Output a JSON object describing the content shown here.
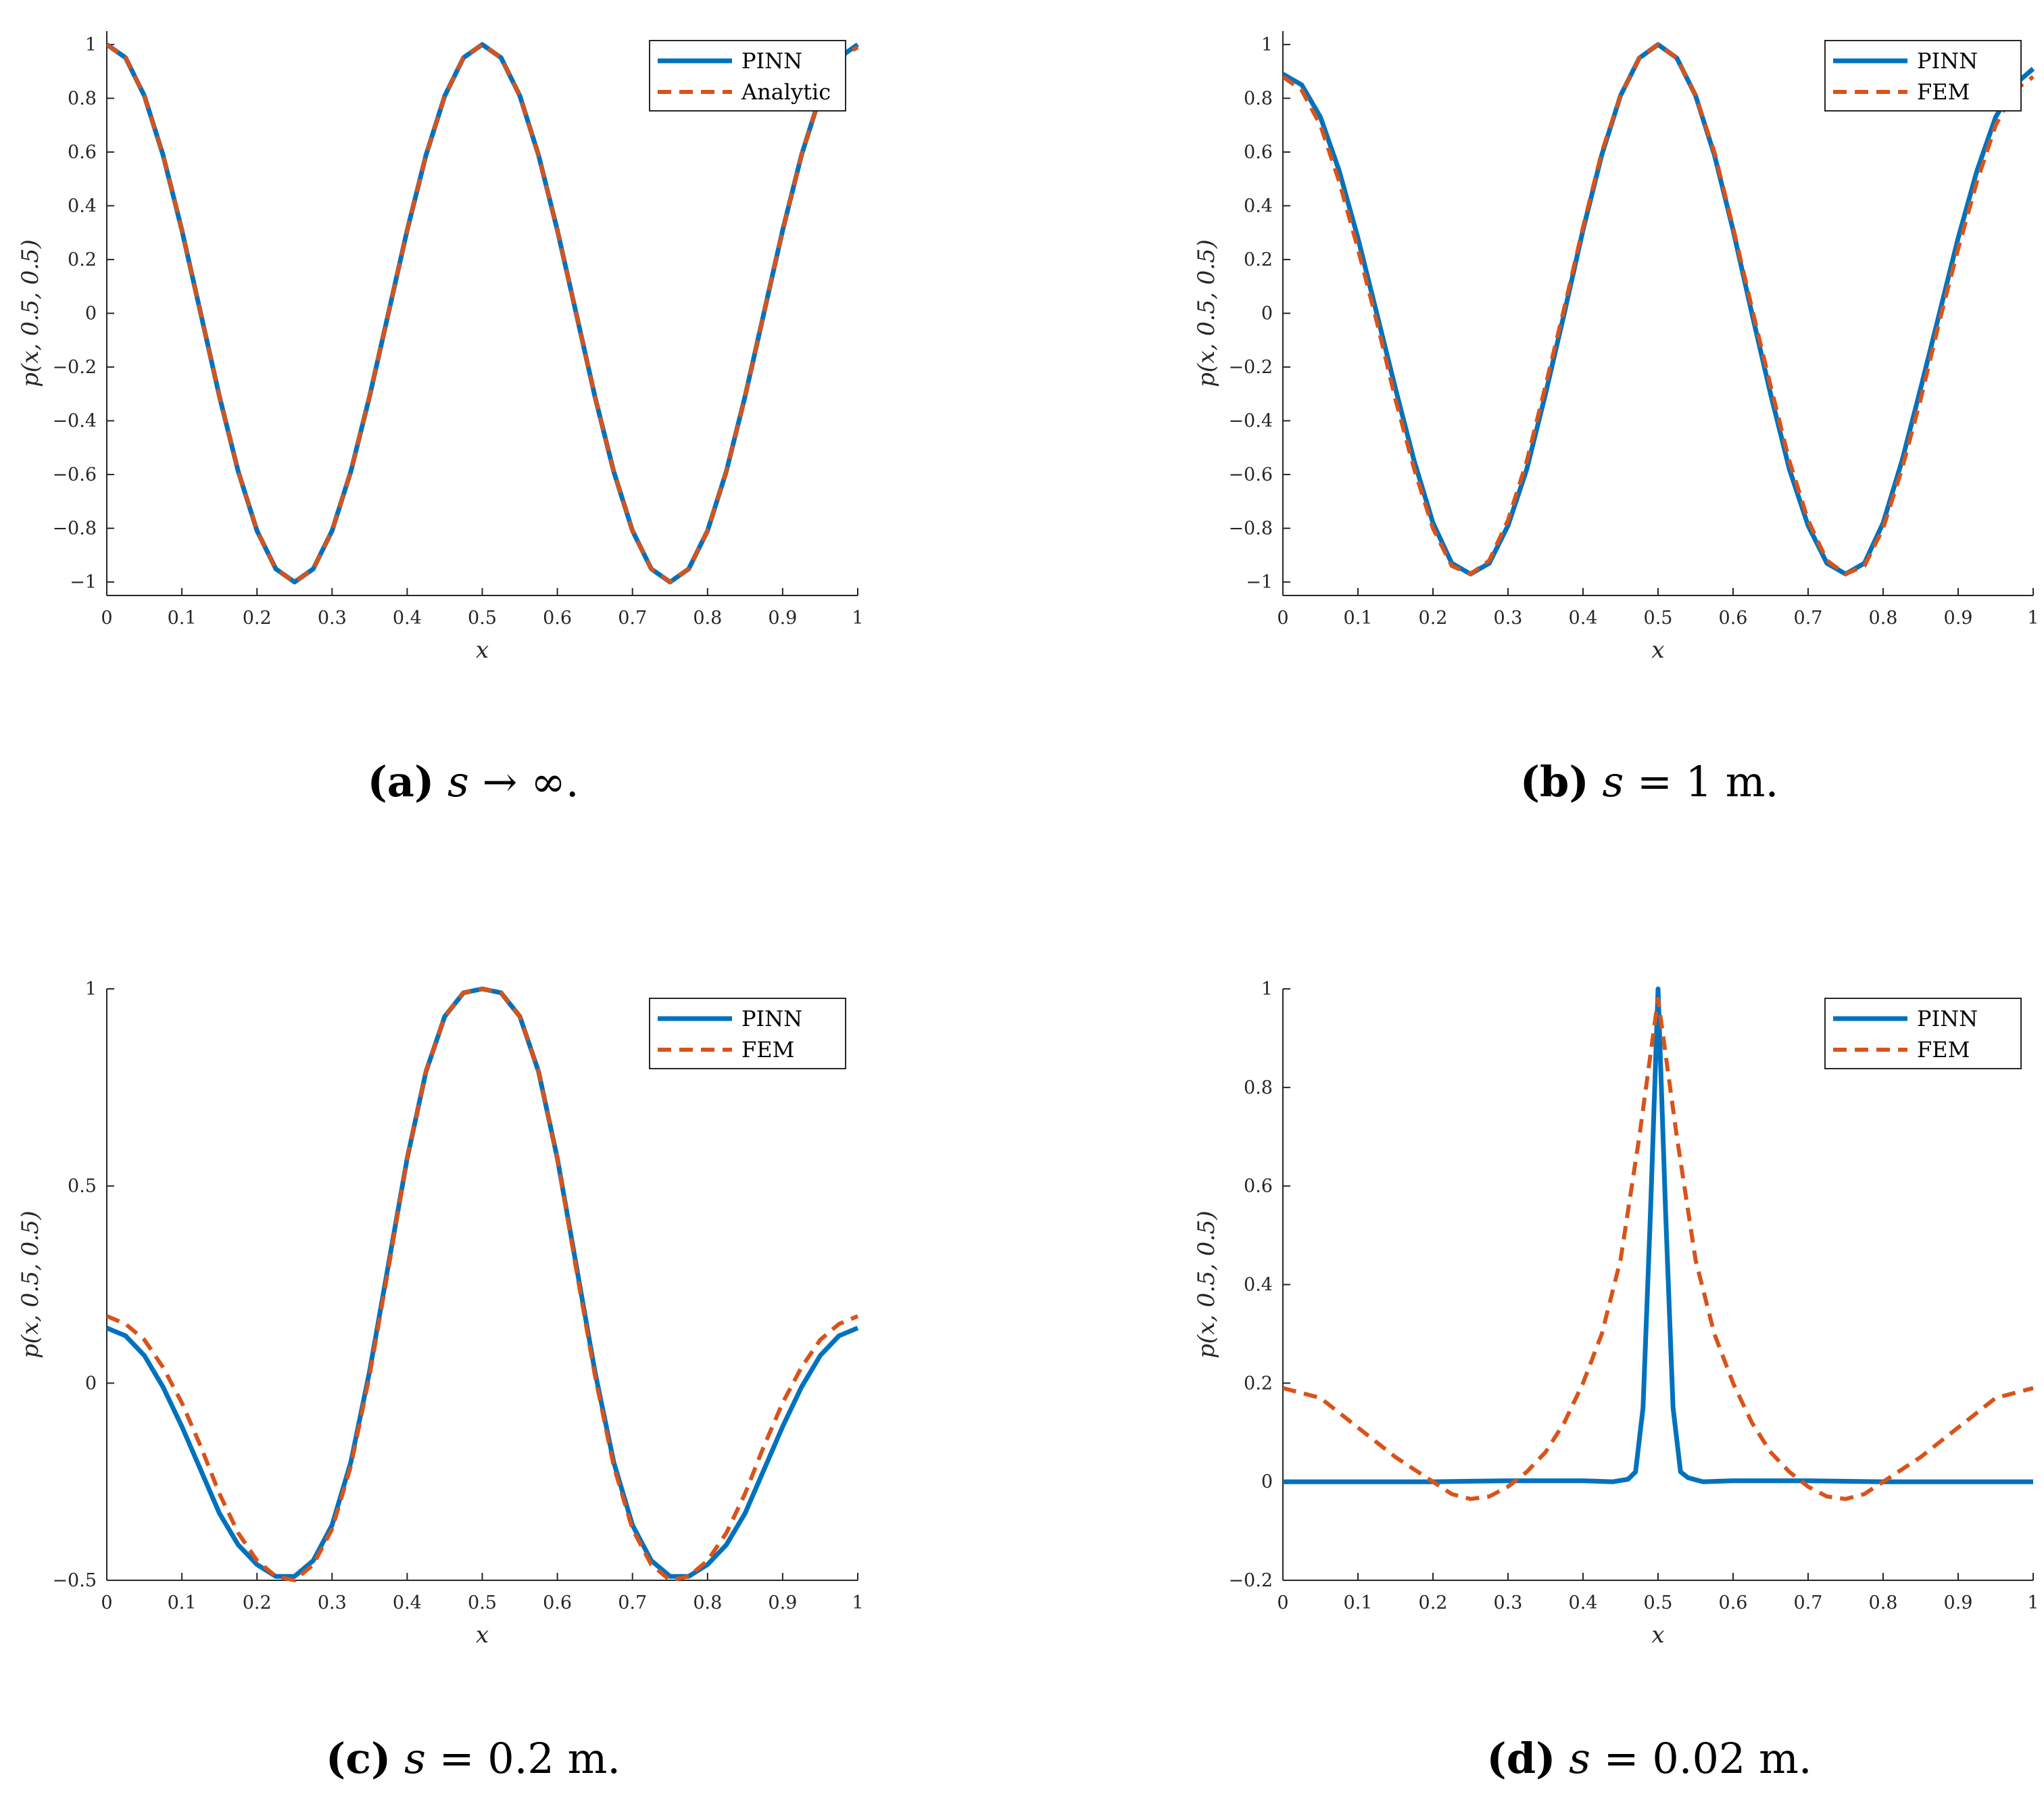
{
  "colors": {
    "pinn": "#0072BD",
    "reference": "#D95319",
    "axis": "#262626"
  },
  "chart_data": [
    {
      "id": "a",
      "type": "line",
      "caption": {
        "letter": "(a)",
        "var": "s",
        "rest": " → ∞."
      },
      "xlabel": "x",
      "ylabel": "p(x, 0.5, 0.5)",
      "xlim": [
        0,
        1
      ],
      "ylim": [
        -1.05,
        1.05
      ],
      "xticks": [
        0,
        0.1,
        0.2,
        0.3,
        0.4,
        0.5,
        0.6,
        0.7,
        0.8,
        0.9,
        1
      ],
      "xtick_labels": [
        "0",
        "0.1",
        "0.2",
        "0.3",
        "0.4",
        "0.5",
        "0.6",
        "0.7",
        "0.8",
        "0.9",
        "1"
      ],
      "yticks": [
        -1,
        -0.8,
        -0.6,
        -0.4,
        -0.2,
        0,
        0.2,
        0.4,
        0.6,
        0.8,
        1
      ],
      "ytick_labels": [
        "−1",
        "−0.8",
        "−0.6",
        "−0.4",
        "−0.2",
        "0",
        "0.2",
        "0.4",
        "0.6",
        "0.8",
        "1"
      ],
      "legend": {
        "position": "top-right",
        "entries": [
          "PINN",
          "Analytic"
        ]
      },
      "series": [
        {
          "name": "PINN",
          "style": "solid",
          "x": [
            0,
            0.025,
            0.05,
            0.075,
            0.1,
            0.125,
            0.15,
            0.175,
            0.2,
            0.225,
            0.25,
            0.275,
            0.3,
            0.325,
            0.35,
            0.375,
            0.4,
            0.425,
            0.45,
            0.475,
            0.5,
            0.525,
            0.55,
            0.575,
            0.6,
            0.625,
            0.65,
            0.675,
            0.7,
            0.725,
            0.75,
            0.775,
            0.8,
            0.825,
            0.85,
            0.875,
            0.9,
            0.925,
            0.95,
            0.975,
            1
          ],
          "y": [
            1,
            0.951,
            0.809,
            0.588,
            0.309,
            0,
            -0.309,
            -0.588,
            -0.809,
            -0.951,
            -1,
            -0.951,
            -0.809,
            -0.588,
            -0.309,
            0,
            0.309,
            0.588,
            0.809,
            0.951,
            1,
            0.951,
            0.809,
            0.588,
            0.309,
            0,
            -0.309,
            -0.588,
            -0.809,
            -0.951,
            -1,
            -0.951,
            -0.809,
            -0.588,
            -0.309,
            0,
            0.309,
            0.588,
            0.809,
            0.951,
            1
          ]
        },
        {
          "name": "Analytic",
          "style": "dashed",
          "x": [
            0,
            0.025,
            0.05,
            0.075,
            0.1,
            0.125,
            0.15,
            0.175,
            0.2,
            0.225,
            0.25,
            0.275,
            0.3,
            0.325,
            0.35,
            0.375,
            0.4,
            0.425,
            0.45,
            0.475,
            0.5,
            0.525,
            0.55,
            0.575,
            0.6,
            0.625,
            0.65,
            0.675,
            0.7,
            0.725,
            0.75,
            0.775,
            0.8,
            0.825,
            0.85,
            0.875,
            0.9,
            0.925,
            0.95,
            0.975,
            1
          ],
          "y": [
            1,
            0.951,
            0.809,
            0.588,
            0.309,
            0,
            -0.309,
            -0.588,
            -0.809,
            -0.951,
            -1,
            -0.951,
            -0.809,
            -0.588,
            -0.309,
            0,
            0.309,
            0.588,
            0.809,
            0.951,
            1,
            0.951,
            0.809,
            0.588,
            0.309,
            0,
            -0.309,
            -0.588,
            -0.809,
            -0.951,
            -1,
            -0.951,
            -0.809,
            -0.588,
            -0.309,
            0,
            0.309,
            0.588,
            0.809,
            0.951,
            0.99
          ]
        }
      ]
    },
    {
      "id": "b",
      "type": "line",
      "caption": {
        "letter": "(b)",
        "var": "s",
        "rest": " = 1 m."
      },
      "xlabel": "x",
      "ylabel": "p(x, 0.5, 0.5)",
      "xlim": [
        0,
        1
      ],
      "ylim": [
        -1.05,
        1.05
      ],
      "xticks": [
        0,
        0.1,
        0.2,
        0.3,
        0.4,
        0.5,
        0.6,
        0.7,
        0.8,
        0.9,
        1
      ],
      "xtick_labels": [
        "0",
        "0.1",
        "0.2",
        "0.3",
        "0.4",
        "0.5",
        "0.6",
        "0.7",
        "0.8",
        "0.9",
        "1"
      ],
      "yticks": [
        -1,
        -0.8,
        -0.6,
        -0.4,
        -0.2,
        0,
        0.2,
        0.4,
        0.6,
        0.8,
        1
      ],
      "ytick_labels": [
        "−1",
        "−0.8",
        "−0.6",
        "−0.4",
        "−0.2",
        "0",
        "0.2",
        "0.4",
        "0.6",
        "0.8",
        "1"
      ],
      "legend": {
        "position": "top-right",
        "entries": [
          "PINN",
          "FEM"
        ]
      },
      "series": [
        {
          "name": "PINN",
          "style": "solid",
          "x": [
            0,
            0.025,
            0.05,
            0.075,
            0.1,
            0.125,
            0.15,
            0.175,
            0.2,
            0.225,
            0.25,
            0.275,
            0.3,
            0.325,
            0.35,
            0.375,
            0.4,
            0.425,
            0.45,
            0.475,
            0.5,
            0.525,
            0.55,
            0.575,
            0.6,
            0.625,
            0.65,
            0.675,
            0.7,
            0.725,
            0.75,
            0.775,
            0.8,
            0.825,
            0.85,
            0.875,
            0.9,
            0.925,
            0.95,
            0.975,
            1
          ],
          "y": [
            0.89,
            0.85,
            0.73,
            0.53,
            0.28,
            0,
            -0.28,
            -0.55,
            -0.78,
            -0.93,
            -0.97,
            -0.93,
            -0.79,
            -0.58,
            -0.3,
            0,
            0.31,
            0.59,
            0.81,
            0.95,
            1,
            0.95,
            0.81,
            0.59,
            0.31,
            0,
            -0.3,
            -0.58,
            -0.79,
            -0.93,
            -0.97,
            -0.93,
            -0.78,
            -0.55,
            -0.28,
            0,
            0.28,
            0.53,
            0.73,
            0.85,
            0.91
          ]
        },
        {
          "name": "FEM",
          "style": "dashed",
          "x": [
            0,
            0.025,
            0.05,
            0.075,
            0.1,
            0.125,
            0.15,
            0.175,
            0.2,
            0.225,
            0.25,
            0.275,
            0.3,
            0.325,
            0.35,
            0.375,
            0.4,
            0.425,
            0.45,
            0.475,
            0.5,
            0.525,
            0.55,
            0.575,
            0.6,
            0.625,
            0.65,
            0.675,
            0.7,
            0.725,
            0.75,
            0.775,
            0.8,
            0.825,
            0.85,
            0.875,
            0.9,
            0.925,
            0.95,
            0.975,
            1
          ],
          "y": [
            0.88,
            0.83,
            0.7,
            0.49,
            0.24,
            -0.03,
            -0.32,
            -0.58,
            -0.8,
            -0.94,
            -0.97,
            -0.92,
            -0.77,
            -0.55,
            -0.27,
            0.02,
            0.32,
            0.6,
            0.81,
            0.95,
            1,
            0.95,
            0.81,
            0.6,
            0.32,
            0.02,
            -0.27,
            -0.55,
            -0.77,
            -0.92,
            -0.97,
            -0.94,
            -0.8,
            -0.58,
            -0.32,
            -0.03,
            0.24,
            0.49,
            0.7,
            0.83,
            0.88
          ]
        }
      ]
    },
    {
      "id": "c",
      "type": "line",
      "caption": {
        "letter": "(c)",
        "var": "s",
        "rest": " = 0.2 m."
      },
      "xlabel": "x",
      "ylabel": "p(x, 0.5, 0.5)",
      "xlim": [
        0,
        1
      ],
      "ylim": [
        -0.5,
        1
      ],
      "xticks": [
        0,
        0.1,
        0.2,
        0.3,
        0.4,
        0.5,
        0.6,
        0.7,
        0.8,
        0.9,
        1
      ],
      "xtick_labels": [
        "0",
        "0.1",
        "0.2",
        "0.3",
        "0.4",
        "0.5",
        "0.6",
        "0.7",
        "0.8",
        "0.9",
        "1"
      ],
      "yticks": [
        -0.5,
        0,
        0.5,
        1
      ],
      "ytick_labels": [
        "−0.5",
        "0",
        "0.5",
        "1"
      ],
      "legend": {
        "position": "top-right",
        "entries": [
          "PINN",
          "FEM"
        ]
      },
      "series": [
        {
          "name": "PINN",
          "style": "solid",
          "x": [
            0,
            0.025,
            0.05,
            0.075,
            0.1,
            0.125,
            0.15,
            0.175,
            0.2,
            0.225,
            0.25,
            0.275,
            0.3,
            0.325,
            0.35,
            0.375,
            0.4,
            0.425,
            0.45,
            0.475,
            0.5,
            0.525,
            0.55,
            0.575,
            0.6,
            0.625,
            0.65,
            0.675,
            0.7,
            0.725,
            0.75,
            0.775,
            0.8,
            0.825,
            0.85,
            0.875,
            0.9,
            0.925,
            0.95,
            0.975,
            1
          ],
          "y": [
            0.14,
            0.12,
            0.07,
            -0.01,
            -0.11,
            -0.22,
            -0.33,
            -0.41,
            -0.46,
            -0.49,
            -0.49,
            -0.45,
            -0.36,
            -0.2,
            0.03,
            0.3,
            0.57,
            0.79,
            0.93,
            0.99,
            1,
            0.99,
            0.93,
            0.79,
            0.57,
            0.3,
            0.03,
            -0.2,
            -0.36,
            -0.45,
            -0.49,
            -0.49,
            -0.46,
            -0.41,
            -0.33,
            -0.22,
            -0.11,
            -0.01,
            0.07,
            0.12,
            0.14
          ]
        },
        {
          "name": "FEM",
          "style": "dashed",
          "x": [
            0,
            0.025,
            0.05,
            0.075,
            0.1,
            0.125,
            0.15,
            0.175,
            0.2,
            0.225,
            0.25,
            0.275,
            0.3,
            0.325,
            0.35,
            0.375,
            0.4,
            0.425,
            0.45,
            0.475,
            0.5,
            0.525,
            0.55,
            0.575,
            0.6,
            0.625,
            0.65,
            0.675,
            0.7,
            0.725,
            0.75,
            0.775,
            0.8,
            0.825,
            0.85,
            0.875,
            0.9,
            0.925,
            0.95,
            0.975,
            1
          ],
          "y": [
            0.17,
            0.15,
            0.11,
            0.04,
            -0.05,
            -0.16,
            -0.28,
            -0.38,
            -0.45,
            -0.49,
            -0.5,
            -0.46,
            -0.37,
            -0.21,
            0.02,
            0.29,
            0.57,
            0.79,
            0.93,
            0.99,
            1,
            0.99,
            0.93,
            0.79,
            0.57,
            0.29,
            0.02,
            -0.21,
            -0.37,
            -0.46,
            -0.5,
            -0.49,
            -0.45,
            -0.38,
            -0.28,
            -0.16,
            -0.05,
            0.04,
            0.11,
            0.15,
            0.17
          ]
        }
      ]
    },
    {
      "id": "d",
      "type": "line",
      "caption": {
        "letter": "(d)",
        "var": "s",
        "rest": " = 0.02 m."
      },
      "xlabel": "x",
      "ylabel": "p(x, 0.5, 0.5)",
      "xlim": [
        0,
        1
      ],
      "ylim": [
        -0.2,
        1
      ],
      "xticks": [
        0,
        0.1,
        0.2,
        0.3,
        0.4,
        0.5,
        0.6,
        0.7,
        0.8,
        0.9,
        1
      ],
      "xtick_labels": [
        "0",
        "0.1",
        "0.2",
        "0.3",
        "0.4",
        "0.5",
        "0.6",
        "0.7",
        "0.8",
        "0.9",
        "1"
      ],
      "yticks": [
        -0.2,
        0,
        0.2,
        0.4,
        0.6,
        0.8,
        1
      ],
      "ytick_labels": [
        "−0.2",
        "0",
        "0.2",
        "0.4",
        "0.6",
        "0.8",
        "1"
      ],
      "legend": {
        "position": "top-right",
        "entries": [
          "PINN",
          "FEM"
        ]
      },
      "series": [
        {
          "name": "PINN",
          "style": "solid",
          "x": [
            0,
            0.1,
            0.2,
            0.3,
            0.4,
            0.44,
            0.46,
            0.47,
            0.48,
            0.49,
            0.5,
            0.51,
            0.52,
            0.53,
            0.54,
            0.56,
            0.6,
            0.7,
            0.8,
            0.9,
            1
          ],
          "y": [
            0,
            0,
            0,
            0.002,
            0.002,
            0,
            0.005,
            0.02,
            0.15,
            0.55,
            1,
            0.55,
            0.15,
            0.02,
            0.008,
            0,
            0.002,
            0.002,
            0,
            0,
            0
          ]
        },
        {
          "name": "FEM",
          "style": "dashed",
          "x": [
            0,
            0.05,
            0.1,
            0.15,
            0.2,
            0.225,
            0.25,
            0.275,
            0.3,
            0.325,
            0.35,
            0.375,
            0.4,
            0.425,
            0.45,
            0.475,
            0.5,
            0.525,
            0.55,
            0.575,
            0.6,
            0.625,
            0.65,
            0.675,
            0.7,
            0.725,
            0.75,
            0.775,
            0.8,
            0.85,
            0.9,
            0.95,
            1
          ],
          "y": [
            0.19,
            0.17,
            0.11,
            0.05,
            0,
            -0.025,
            -0.035,
            -0.03,
            -0.01,
            0.02,
            0.06,
            0.12,
            0.2,
            0.3,
            0.45,
            0.7,
            0.98,
            0.7,
            0.45,
            0.3,
            0.2,
            0.12,
            0.06,
            0.02,
            -0.01,
            -0.03,
            -0.035,
            -0.025,
            0,
            0.05,
            0.11,
            0.17,
            0.19
          ]
        }
      ]
    }
  ]
}
